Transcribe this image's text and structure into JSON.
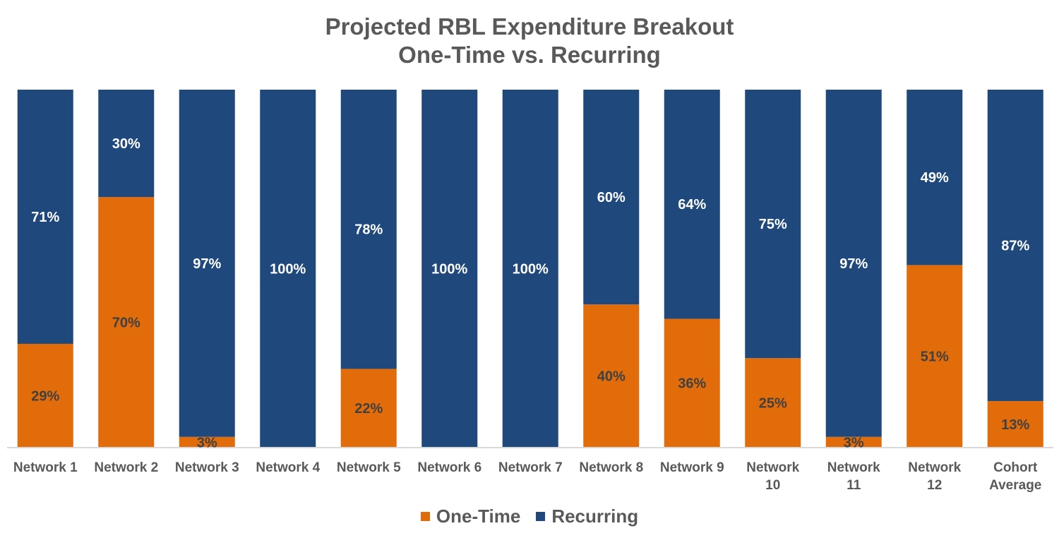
{
  "chart_data": {
    "type": "bar",
    "stacked": true,
    "percent_stacked": true,
    "title": [
      "Projected RBL Expenditure Breakout",
      "One-Time vs. Recurring"
    ],
    "categories": [
      [
        "Network 1"
      ],
      [
        "Network 2"
      ],
      [
        "Network 3"
      ],
      [
        "Network 4"
      ],
      [
        "Network 5"
      ],
      [
        "Network 6"
      ],
      [
        "Network 7"
      ],
      [
        "Network 8"
      ],
      [
        "Network 9"
      ],
      [
        "Network",
        "10"
      ],
      [
        "Network",
        "11"
      ],
      [
        "Network",
        "12"
      ],
      [
        "Cohort",
        "Average"
      ]
    ],
    "series": [
      {
        "name": "One-Time",
        "color": "#E36C0A",
        "label_color": "#404040",
        "values": [
          29,
          70,
          3,
          0,
          22,
          0,
          0,
          40,
          36,
          25,
          3,
          51,
          13
        ],
        "labels": [
          "29%",
          "70%",
          "3%",
          "",
          "22%",
          "",
          "",
          "40%",
          "36%",
          "25%",
          "3%",
          "51%",
          "13%"
        ]
      },
      {
        "name": "Recurring",
        "color": "#1F497D",
        "label_color": "#FFFFFF",
        "values": [
          71,
          30,
          97,
          100,
          78,
          100,
          100,
          60,
          64,
          75,
          97,
          49,
          87
        ],
        "labels": [
          "71%",
          "30%",
          "97%",
          "100%",
          "78%",
          "100%",
          "100%",
          "60%",
          "64%",
          "75%",
          "97%",
          "49%",
          "87%"
        ]
      }
    ],
    "ylim": [
      0,
      100
    ],
    "grid": false,
    "legend_position": "bottom"
  }
}
